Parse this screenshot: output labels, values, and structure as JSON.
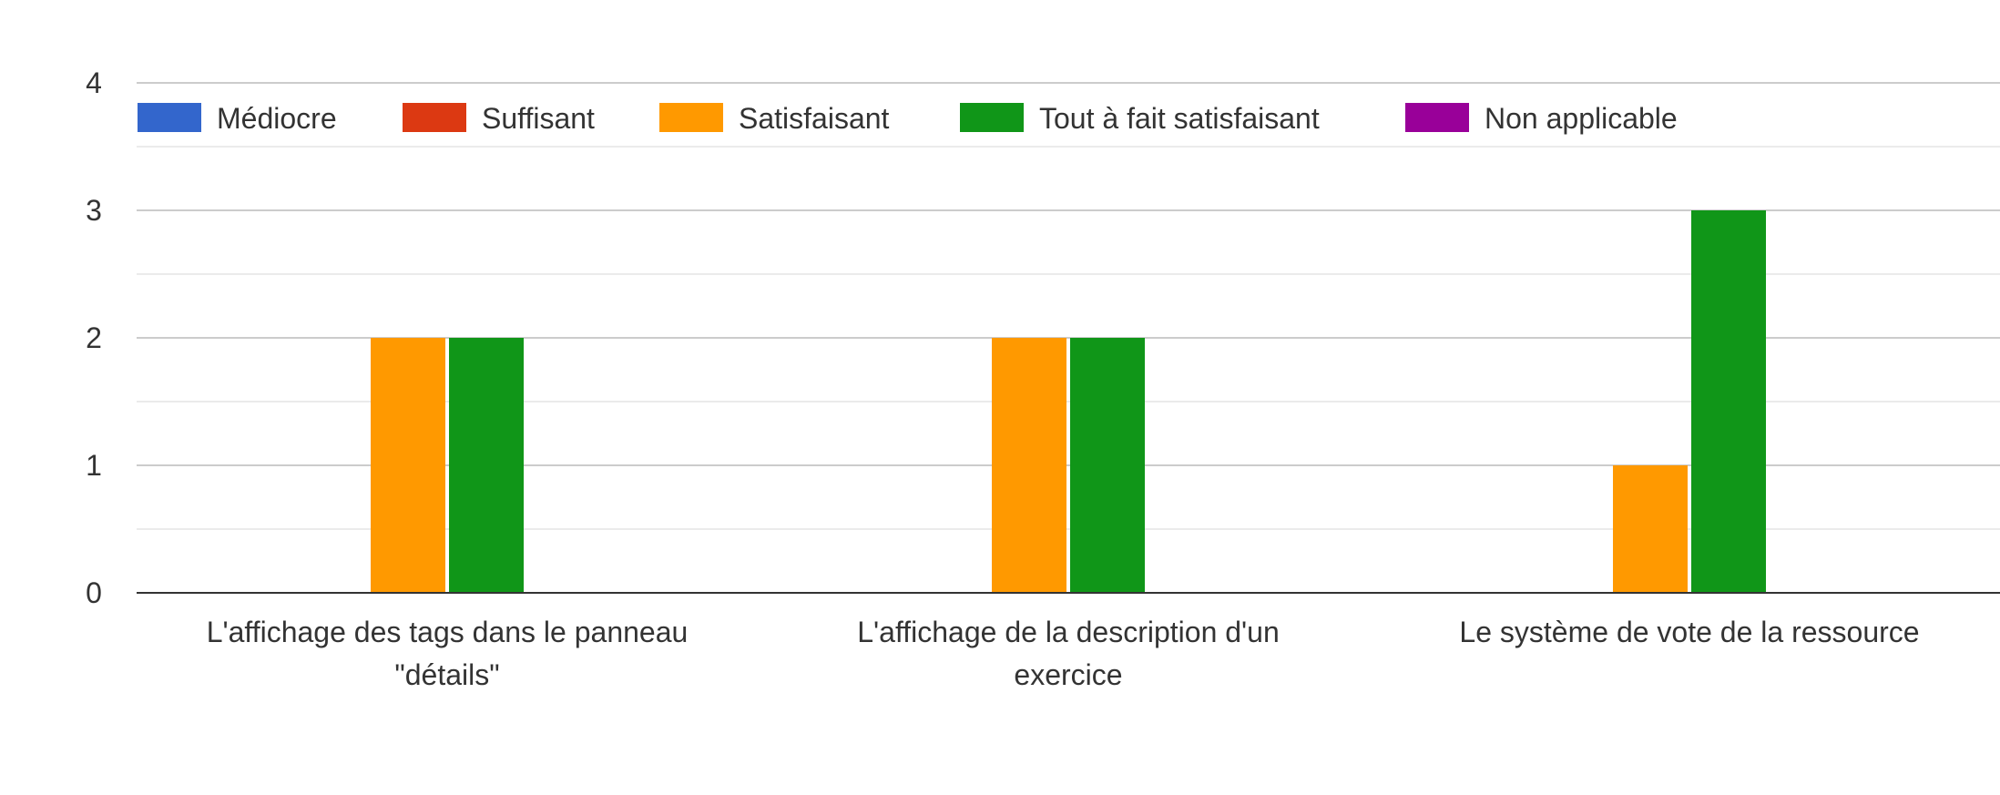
{
  "chart_data": {
    "type": "bar",
    "title": "",
    "xlabel": "",
    "ylabel": "",
    "ylim": [
      0,
      4
    ],
    "yticks": [
      0,
      1,
      2,
      3,
      4
    ],
    "grid": true,
    "legend_position": "top",
    "categories": [
      [
        "L'affichage des tags dans le panneau",
        "\"détails\""
      ],
      [
        "L'affichage de la description d'un",
        "exercice"
      ],
      [
        "Le système de vote de la ressource"
      ]
    ],
    "series": [
      {
        "name": "Médiocre",
        "color": "#3366cc",
        "values": [
          0,
          0,
          0
        ]
      },
      {
        "name": "Suffisant",
        "color": "#dc3912",
        "values": [
          0,
          0,
          0
        ]
      },
      {
        "name": "Satisfaisant",
        "color": "#ff9900",
        "values": [
          2,
          2,
          1
        ]
      },
      {
        "name": "Tout à fait satisfaisant",
        "color": "#109618",
        "values": [
          2,
          2,
          3
        ]
      },
      {
        "name": "Non applicable",
        "color": "#990099",
        "values": [
          0,
          0,
          0
        ]
      }
    ]
  }
}
